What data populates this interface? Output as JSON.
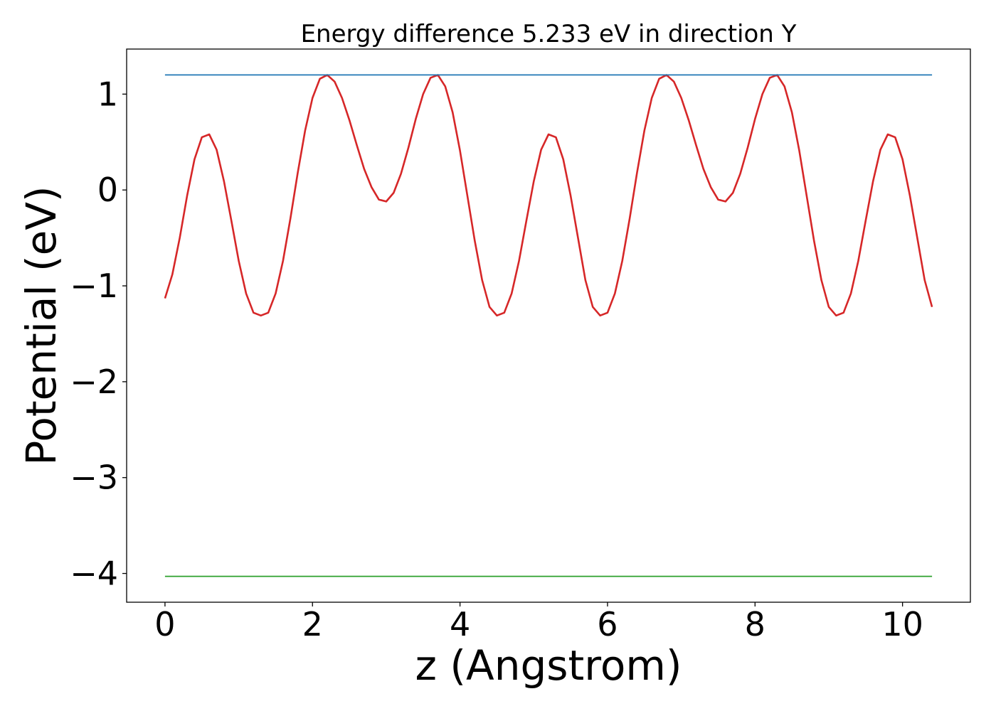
{
  "chart_data": {
    "type": "line",
    "title": "Energy difference 5.233 eV in direction Y",
    "xlabel": "z (Angstrom)",
    "ylabel": "Potential (eV)",
    "xlim": [
      -0.52,
      10.92
    ],
    "ylim": [
      -4.3,
      1.47
    ],
    "x_ticks": [
      0,
      2,
      4,
      6,
      8,
      10
    ],
    "x_tick_labels": [
      "0",
      "2",
      "4",
      "6",
      "8",
      "10"
    ],
    "y_ticks": [
      1,
      0,
      -1,
      -2,
      -3,
      -4
    ],
    "y_tick_labels": [
      "1",
      "0",
      "−1",
      "−2",
      "−3",
      "−4"
    ],
    "grid": false,
    "legend": "none",
    "series": [
      {
        "color": "#d62728",
        "x": [
          0.0,
          0.1,
          0.2,
          0.3,
          0.4,
          0.5,
          0.6,
          0.7,
          0.8,
          0.9,
          1.0,
          1.1,
          1.2,
          1.3,
          1.4,
          1.5,
          1.6,
          1.7,
          1.8,
          1.9,
          2.0,
          2.1,
          2.2,
          2.3,
          2.4,
          2.5,
          2.6,
          2.7,
          2.8,
          2.9,
          3.0,
          3.1,
          3.2,
          3.3,
          3.4,
          3.5,
          3.6,
          3.7,
          3.8,
          3.9,
          4.0,
          4.1,
          4.2,
          4.3,
          4.4,
          4.5,
          4.6,
          4.7,
          4.8,
          4.9,
          5.0,
          5.1,
          5.2,
          5.3,
          5.4,
          5.5,
          5.6,
          5.7,
          5.8,
          5.9,
          6.0,
          6.1,
          6.2,
          6.3,
          6.4,
          6.5,
          6.6,
          6.7,
          6.8,
          6.9,
          7.0,
          7.1,
          7.2,
          7.3,
          7.4,
          7.5,
          7.6,
          7.7,
          7.8,
          7.9,
          8.0,
          8.1,
          8.2,
          8.3,
          8.4,
          8.5,
          8.6,
          8.7,
          8.8,
          8.9,
          9.0,
          9.1,
          9.2,
          9.3,
          9.4,
          9.5,
          9.6,
          9.7,
          9.8,
          9.9,
          10.0,
          10.1,
          10.2,
          10.3,
          10.4
        ],
        "y": [
          -1.13,
          -0.88,
          -0.5,
          -0.06,
          0.32,
          0.55,
          0.58,
          0.42,
          0.09,
          -0.32,
          -0.74,
          -1.08,
          -1.28,
          -1.31,
          -1.28,
          -1.08,
          -0.74,
          -0.3,
          0.18,
          0.62,
          0.96,
          1.16,
          1.2,
          1.13,
          0.96,
          0.73,
          0.47,
          0.22,
          0.03,
          -0.1,
          -0.12,
          -0.03,
          0.17,
          0.44,
          0.74,
          1.0,
          1.17,
          1.2,
          1.08,
          0.81,
          0.41,
          -0.06,
          -0.53,
          -0.94,
          -1.22,
          -1.31,
          -1.28,
          -1.08,
          -0.74,
          -0.32,
          0.09,
          0.42,
          0.58,
          0.55,
          0.32,
          -0.06,
          -0.5,
          -0.94,
          -1.22,
          -1.31,
          -1.28,
          -1.08,
          -0.74,
          -0.3,
          0.18,
          0.62,
          0.96,
          1.16,
          1.2,
          1.13,
          0.96,
          0.73,
          0.47,
          0.22,
          0.03,
          -0.1,
          -0.12,
          -0.03,
          0.17,
          0.44,
          0.74,
          1.0,
          1.17,
          1.2,
          1.08,
          0.81,
          0.41,
          -0.06,
          -0.53,
          -0.94,
          -1.22,
          -1.31,
          -1.28,
          -1.08,
          -0.74,
          -0.32,
          0.09,
          0.42,
          0.58,
          0.55,
          0.32,
          -0.06,
          -0.5,
          -0.94,
          -1.22
        ]
      },
      {
        "color": "#1f77b4",
        "x": [
          0,
          10.4
        ],
        "y": [
          1.2,
          1.2
        ]
      },
      {
        "color": "#2ca02c",
        "x": [
          0,
          10.4
        ],
        "y": [
          -4.03,
          -4.03
        ]
      }
    ]
  }
}
